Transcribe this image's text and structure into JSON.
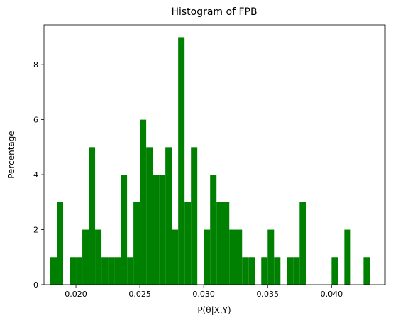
{
  "chart_data": {
    "type": "histogram",
    "title": "Histogram of FPB",
    "xlabel": "P(θ|X,Y)",
    "ylabel": "Percentage",
    "color": "#008000",
    "bins": [
      0.018,
      0.0185,
      0.019,
      0.0195,
      0.02,
      0.0205,
      0.021,
      0.0215,
      0.022,
      0.0225,
      0.023,
      0.0235,
      0.024,
      0.0245,
      0.025,
      0.0255,
      0.026,
      0.0265,
      0.027,
      0.0275,
      0.028,
      0.0285,
      0.029,
      0.0295,
      0.03,
      0.0305,
      0.031,
      0.0315,
      0.032,
      0.0325,
      0.033,
      0.0335,
      0.034,
      0.0345,
      0.035,
      0.0355,
      0.036,
      0.0365,
      0.037,
      0.0375,
      0.038,
      0.0385,
      0.039,
      0.0395,
      0.04,
      0.0405,
      0.041,
      0.0415,
      0.042,
      0.0425,
      0.043
    ],
    "counts": [
      1,
      3,
      0,
      1,
      1,
      2,
      5,
      2,
      1,
      1,
      1,
      4,
      1,
      3,
      6,
      5,
      4,
      4,
      5,
      2,
      9,
      3,
      5,
      0,
      2,
      4,
      3,
      3,
      2,
      2,
      1,
      1,
      0,
      1,
      2,
      1,
      0,
      1,
      1,
      3,
      0,
      0,
      0,
      0,
      1,
      0,
      2,
      0,
      0,
      1
    ],
    "xlim": [
      0.0175,
      0.0442
    ],
    "xticks": [
      {
        "value": 0.02,
        "label": "0.020"
      },
      {
        "value": 0.025,
        "label": "0.025"
      },
      {
        "value": 0.03,
        "label": "0.030"
      },
      {
        "value": 0.035,
        "label": "0.035"
      },
      {
        "value": 0.04,
        "label": "0.040"
      }
    ],
    "ylim": [
      0,
      9.45
    ],
    "yticks": [
      0,
      2,
      4,
      6,
      8
    ]
  }
}
